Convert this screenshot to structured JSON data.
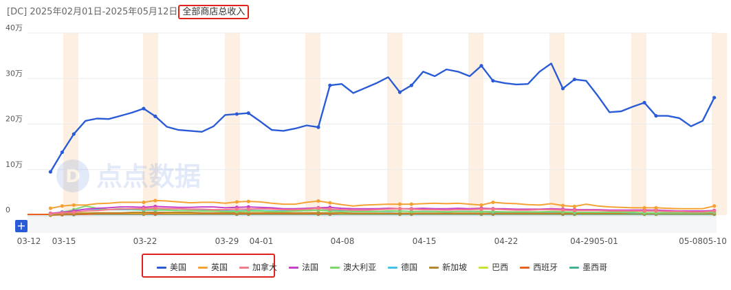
{
  "header": {
    "title": "[DC] 2025年02月01日-2025年05月12日",
    "metric": "全部商店总收入"
  },
  "watermark": {
    "text": "点点数据",
    "glyph": "D"
  },
  "zoom": {
    "icon": "plus-icon",
    "label": "+"
  },
  "highlight_color": "#fdf0e2",
  "chart_data": {
    "type": "line",
    "title": "[DC] 2025年02月01日-2025年05月12日",
    "metric": "全部商店总收入",
    "ylim": [
      0,
      400000
    ],
    "y_ticks": [
      0,
      100000,
      200000,
      300000,
      400000
    ],
    "y_tick_labels": [
      "0",
      "10万",
      "20万",
      "30万",
      "40万"
    ],
    "x_ticks": [
      "03-12",
      "03-15",
      "03-22",
      "03-29",
      "04-01",
      "04-08",
      "04-15",
      "04-22",
      "04-2905-01",
      "05-0805-10"
    ],
    "grid": true,
    "legend": "bottom",
    "highlight_note": "weekend bands",
    "series": [
      {
        "name": "美国",
        "color": "#2a5bd7",
        "values": [
          95000,
          138000,
          178000,
          207000,
          212000,
          211000,
          218000,
          225000,
          234000,
          217000,
          194000,
          187000,
          185000,
          183000,
          195000,
          220000,
          222000,
          224000,
          206000,
          187000,
          185000,
          190000,
          197000,
          193000,
          285000,
          288000,
          268000,
          279000,
          290000,
          303000,
          270000,
          285000,
          315000,
          305000,
          320000,
          315000,
          305000,
          328000,
          295000,
          290000,
          287000,
          288000,
          315000,
          333000,
          278000,
          298000,
          295000,
          262000,
          226000,
          228000,
          238000,
          247000,
          218000,
          218000,
          213000,
          195000,
          207000,
          258000
        ]
      },
      {
        "name": "英国",
        "color": "#f5a033",
        "values": [
          15000,
          20000,
          22000,
          22000,
          25000,
          26000,
          28000,
          28000,
          28000,
          32000,
          31000,
          29000,
          27000,
          28000,
          28000,
          26000,
          29000,
          30000,
          29000,
          26000,
          24000,
          24000,
          28000,
          31000,
          27000,
          23000,
          20000,
          22000,
          23000,
          24000,
          24000,
          24000,
          25000,
          26000,
          25000,
          26000,
          24000,
          22000,
          28000,
          26000,
          25000,
          23000,
          22000,
          25000,
          21000,
          19000,
          24000,
          20000,
          18000,
          17000,
          16000,
          16000,
          16000,
          15000,
          14000,
          14000,
          14000,
          20000
        ]
      },
      {
        "name": "加拿大",
        "color": "#f07a87",
        "values": [
          3000,
          5000,
          6000,
          9000,
          10000,
          12000,
          13000,
          14000,
          14000,
          15000,
          14000,
          14000,
          13000,
          13000,
          12000,
          12000,
          13000,
          13000,
          14000,
          13000,
          12000,
          12000,
          13000,
          15000,
          13000,
          12000,
          11000,
          11000,
          12000,
          13000,
          14000,
          13000,
          12000,
          12000,
          11000,
          12000,
          12000,
          13000,
          13000,
          12000,
          11000,
          11000,
          12000,
          12000,
          11000,
          10000,
          10000,
          10000,
          9000,
          9000,
          9000,
          9000,
          9000,
          8000,
          8000,
          7000,
          7000,
          9000
        ]
      },
      {
        "name": "法国",
        "color": "#c73ec9",
        "values": [
          4000,
          6000,
          9000,
          13000,
          15000,
          16000,
          18000,
          18000,
          17000,
          19000,
          18000,
          17000,
          17000,
          18000,
          18000,
          16000,
          17000,
          18000,
          17000,
          16000,
          14000,
          14000,
          15000,
          16000,
          17000,
          15000,
          14000,
          14000,
          14000,
          15000,
          14000,
          14000,
          15000,
          14000,
          14000,
          15000,
          14000,
          15000,
          14000,
          14000,
          13000,
          13000,
          13000,
          14000,
          13000,
          12000,
          12000,
          12000,
          11000,
          11000,
          11000,
          11000,
          11000,
          10000,
          9000,
          9000,
          9000,
          10000
        ]
      },
      {
        "name": "澳大利亚",
        "color": "#7dd86c",
        "values": [
          2000,
          6000,
          12000,
          20000,
          15000,
          12000,
          14000,
          13000,
          12000,
          12000,
          11000,
          10000,
          10000,
          9000,
          9000,
          8000,
          8000,
          9000,
          9000,
          8000,
          8000,
          9000,
          10000,
          11000,
          9000,
          8000,
          8000,
          8000,
          8000,
          9000,
          9000,
          8000,
          8000,
          8000,
          7000,
          8000,
          8000,
          8000,
          8000,
          7000,
          7000,
          7000,
          7000,
          8000,
          7000,
          6000,
          6000,
          6000,
          6000,
          6000,
          6000,
          5000,
          5000,
          5000,
          5000,
          5000,
          5000,
          6000
        ]
      },
      {
        "name": "德国",
        "color": "#41c2e8",
        "values": [
          3000,
          7000,
          10000,
          13000,
          13000,
          12000,
          12000,
          12000,
          11000,
          11000,
          11000,
          10000,
          10000,
          10000,
          10000,
          9000,
          9000,
          10000,
          10000,
          9000,
          9000,
          9000,
          10000,
          11000,
          10000,
          9000,
          8000,
          8000,
          8000,
          8000,
          9000,
          8000,
          8000,
          8000,
          7000,
          8000,
          8000,
          8000,
          7000,
          7000,
          7000,
          7000,
          7000,
          7000,
          7000,
          6000,
          6000,
          6000,
          6000,
          6000,
          5000,
          5000,
          5000,
          5000,
          5000,
          5000,
          5000,
          6000
        ]
      },
      {
        "name": "新加坡",
        "color": "#b8842c",
        "values": [
          1000,
          2000,
          3000,
          4000,
          5000,
          5000,
          5000,
          6000,
          6000,
          6000,
          6000,
          6000,
          6000,
          5000,
          5000,
          5000,
          5000,
          5000,
          5000,
          5000,
          5000,
          5000,
          5000,
          5000,
          5000,
          5000,
          4000,
          4000,
          4000,
          4000,
          4000,
          4000,
          4000,
          4000,
          4000,
          4000,
          4000,
          4000,
          4000,
          4000,
          4000,
          4000,
          4000,
          4000,
          4000,
          3000,
          3000,
          3000,
          3000,
          3000,
          3000,
          3000,
          3000,
          3000,
          3000,
          3000,
          3000,
          3000
        ]
      },
      {
        "name": "巴西",
        "color": "#c9e23a",
        "values": [
          1000,
          3000,
          4000,
          5000,
          5000,
          5000,
          5000,
          5000,
          5000,
          6000,
          5000,
          5000,
          5000,
          5000,
          5000,
          5000,
          5000,
          5000,
          5000,
          5000,
          5000,
          5000,
          5000,
          5000,
          5000,
          4000,
          4000,
          4000,
          4000,
          4000,
          4000,
          4000,
          4000,
          4000,
          4000,
          4000,
          4000,
          4000,
          4000,
          4000,
          4000,
          4000,
          4000,
          4000,
          4000,
          4000,
          4000,
          4000,
          3000,
          3000,
          3000,
          3000,
          3000,
          3000,
          3000,
          3000,
          3000,
          3000
        ]
      },
      {
        "name": "西班牙",
        "color": "#e8601c",
        "values": [
          0,
          1000,
          2000,
          2000,
          3000,
          3000,
          3000,
          3000,
          3000,
          3000,
          3000,
          3000,
          3000,
          3000,
          3000,
          3000,
          3000,
          3000,
          3000,
          3000,
          3000,
          3000,
          3000,
          3000,
          3000,
          3000,
          3000,
          3000,
          3000,
          3000,
          3000,
          3000,
          3000,
          3000,
          3000,
          3000,
          3000,
          3000,
          3000,
          3000,
          3000,
          3000,
          3000,
          3000,
          3000,
          3000,
          3000,
          3000,
          3000,
          3000,
          3000,
          3000,
          3000,
          3000,
          3000,
          3000,
          3000,
          3000
        ]
      },
      {
        "name": "墨西哥",
        "color": "#3fb394",
        "values": [
          0,
          1000,
          1000,
          2000,
          2000,
          2000,
          2000,
          2000,
          2000,
          2000,
          2000,
          2000,
          2000,
          2000,
          2000,
          2000,
          2000,
          2000,
          2000,
          2000,
          2000,
          2000,
          2000,
          2000,
          2000,
          2000,
          2000,
          2000,
          2000,
          2000,
          2000,
          2000,
          2000,
          2000,
          2000,
          2000,
          2000,
          2000,
          2000,
          2000,
          2000,
          2000,
          2000,
          2000,
          2000,
          2000,
          2000,
          2000,
          2000,
          2000,
          2000,
          2000,
          2000,
          2000,
          2000,
          2000,
          2000,
          2000
        ]
      }
    ]
  }
}
